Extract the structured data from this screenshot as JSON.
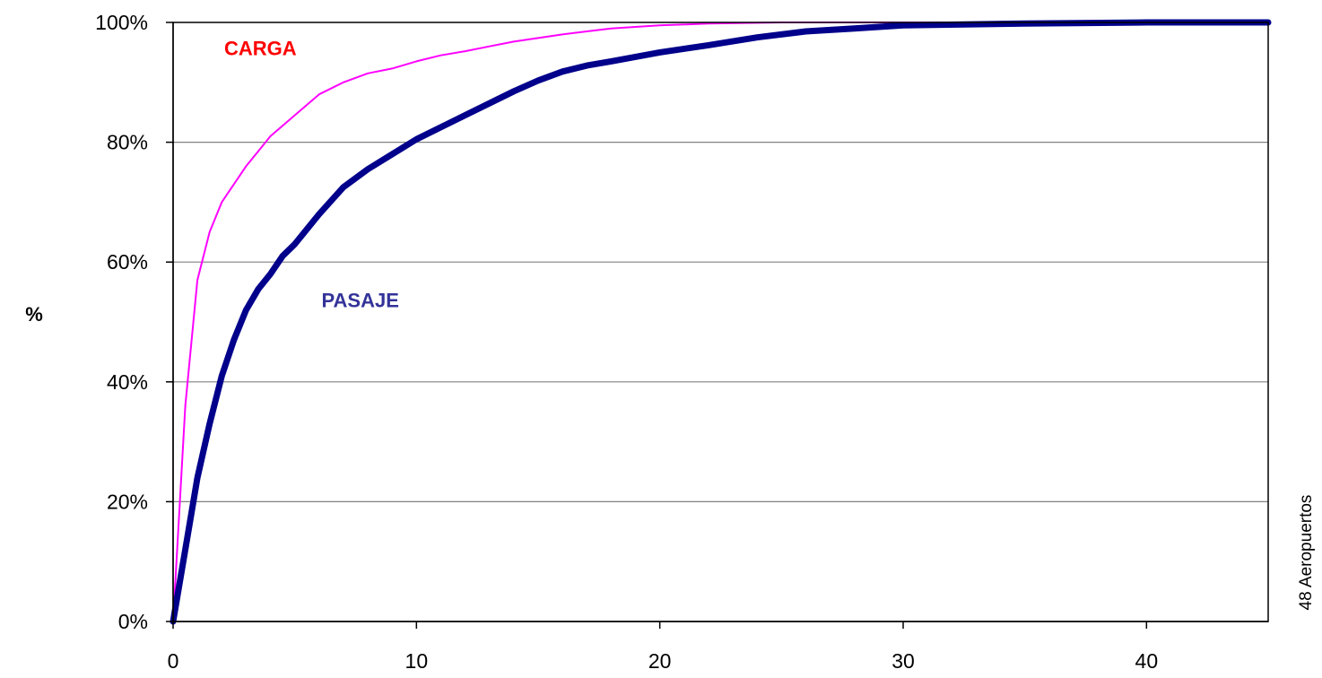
{
  "chart_data": {
    "type": "line",
    "ylabel": "%",
    "xlim": [
      0,
      45
    ],
    "ylim": [
      0,
      100
    ],
    "x_ticks": [
      0,
      10,
      20,
      30,
      40
    ],
    "y_ticks": [
      "0%",
      "20%",
      "40%",
      "60%",
      "80%",
      "100%"
    ],
    "y_tick_values": [
      0,
      20,
      40,
      60,
      80,
      100
    ],
    "grid": true,
    "side_note": "48 Aeropuertos",
    "series": [
      {
        "name": "CARGA",
        "color": "#ff00ff",
        "label_color": "#ff0000",
        "x": [
          0,
          0.5,
          1,
          1.5,
          2,
          2.5,
          3,
          3.5,
          4,
          5,
          6,
          7,
          8,
          9,
          10,
          11,
          12,
          13,
          14,
          15,
          16,
          17,
          18,
          20,
          22,
          25,
          30,
          35,
          40,
          45
        ],
        "y": [
          0,
          36,
          57,
          65,
          70,
          73,
          76,
          78.5,
          81,
          84.5,
          88,
          90,
          91.5,
          92.3,
          93.5,
          94.5,
          95.2,
          96,
          96.8,
          97.4,
          98,
          98.5,
          99,
          99.5,
          99.8,
          100,
          100,
          100,
          100,
          100
        ]
      },
      {
        "name": "PASAJE",
        "color": "#00008b",
        "label_color": "#333399",
        "x": [
          0,
          0.5,
          1,
          1.5,
          2,
          2.5,
          3,
          3.5,
          4,
          4.5,
          5,
          6,
          7,
          8,
          9,
          10,
          11,
          12,
          13,
          14,
          15,
          16,
          17,
          18,
          20,
          22,
          24,
          26,
          28,
          30,
          35,
          40,
          45
        ],
        "y": [
          0,
          12,
          24,
          33,
          41,
          47,
          52,
          55.5,
          58,
          61,
          63,
          68,
          72.5,
          75.5,
          78,
          80.5,
          82.5,
          84.5,
          86.5,
          88.5,
          90.3,
          91.8,
          92.8,
          93.5,
          95,
          96.2,
          97.5,
          98.5,
          99,
          99.5,
          99.8,
          100,
          100
        ]
      }
    ]
  }
}
